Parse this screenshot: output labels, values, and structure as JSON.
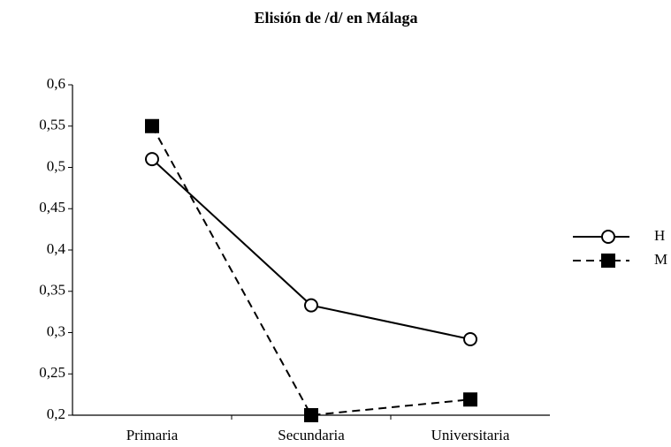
{
  "chart_data": {
    "type": "line",
    "title": "Elisión de /d/ en Málaga",
    "categories": [
      "Primaria",
      "Secundaria",
      "Universitaria"
    ],
    "series": [
      {
        "name": "H",
        "color": "#000000",
        "marker": "circle",
        "line_style": "solid",
        "values": [
          0.51,
          0.333,
          0.292
        ]
      },
      {
        "name": "M",
        "color": "#000000",
        "marker": "square",
        "line_style": "dashed",
        "values": [
          0.55,
          0.2,
          0.219
        ]
      }
    ],
    "ylim": [
      0.2,
      0.6
    ],
    "yticks": [
      {
        "value": 0.2,
        "label": "0,2"
      },
      {
        "value": 0.25,
        "label": "0,25"
      },
      {
        "value": 0.3,
        "label": "0,3"
      },
      {
        "value": 0.35,
        "label": "0,35"
      },
      {
        "value": 0.4,
        "label": "0,4"
      },
      {
        "value": 0.45,
        "label": "0,45"
      },
      {
        "value": 0.5,
        "label": "0,5"
      },
      {
        "value": 0.55,
        "label": "0,55"
      },
      {
        "value": 0.6,
        "label": "0,6"
      }
    ],
    "grid": false,
    "legend": "right"
  }
}
